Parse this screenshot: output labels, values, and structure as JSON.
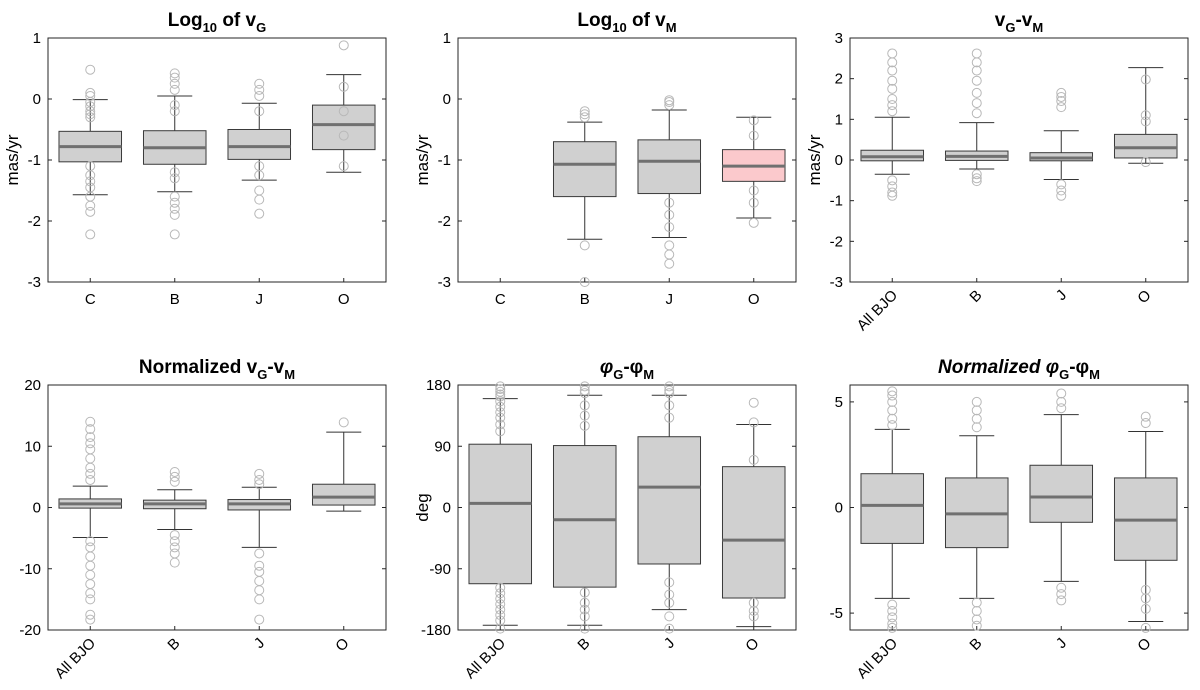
{
  "colors": {
    "box_fill": "#d0d0d0",
    "box_highlight": "#fbc9cc",
    "median": "#707070",
    "outlier": "#b8b8b8",
    "whisker": "#333333"
  },
  "chart_data": [
    {
      "type": "boxplot",
      "title": {
        "base": "Log",
        "sub": "10",
        "mid": " of v",
        "sub2": "G"
      },
      "ylabel": "mas/yr",
      "ylim": [
        -3,
        1
      ],
      "yticks": [
        1,
        0,
        -1,
        -2,
        -3
      ],
      "ytick_labels": [
        "1",
        "0",
        "-1",
        "-2",
        "-3"
      ],
      "categories": [
        "C",
        "B",
        "J",
        "O"
      ],
      "rotate_labels": false,
      "boxes": [
        {
          "q1": -1.03,
          "median": -0.78,
          "q3": -0.53,
          "wlo": -1.57,
          "whi": -0.01,
          "outliers": [
            0.48,
            0.1,
            0.05,
            -0.05,
            -0.12,
            -0.2,
            -0.25,
            -0.3,
            -1.1,
            -1.25,
            -1.35,
            -1.45,
            -1.6,
            -1.75,
            -1.85,
            -2.22
          ]
        },
        {
          "q1": -1.07,
          "median": -0.8,
          "q3": -0.52,
          "wlo": -1.52,
          "whi": 0.05,
          "outliers": [
            0.42,
            0.35,
            0.25,
            0.15,
            -0.1,
            -0.2,
            -1.2,
            -1.3,
            -1.6,
            -1.7,
            -1.8,
            -1.9,
            -2.22
          ]
        },
        {
          "q1": -0.99,
          "median": -0.78,
          "q3": -0.5,
          "wlo": -1.33,
          "whi": -0.07,
          "outliers": [
            0.25,
            0.15,
            0.05,
            -0.2,
            -1.1,
            -1.25,
            -1.5,
            -1.65,
            -1.88
          ]
        },
        {
          "q1": -0.83,
          "median": -0.42,
          "q3": -0.1,
          "wlo": -1.2,
          "whi": 0.4,
          "outliers": [
            0.88,
            0.2,
            -0.2,
            -0.6,
            -1.1
          ]
        }
      ]
    },
    {
      "type": "boxplot",
      "title": {
        "base": "Log",
        "sub": "10",
        "mid": " of v",
        "sub2": "M"
      },
      "ylabel": "mas/yr",
      "ylim": [
        -3,
        1
      ],
      "yticks": [
        1,
        0,
        -1,
        -2,
        -3
      ],
      "ytick_labels": [
        "1",
        "0",
        "-1",
        "-2",
        "-3"
      ],
      "categories": [
        "C",
        "B",
        "J",
        "O"
      ],
      "rotate_labels": false,
      "boxes": [
        null,
        {
          "q1": -1.6,
          "median": -1.07,
          "q3": -0.7,
          "wlo": -2.3,
          "whi": -0.38,
          "outliers": [
            -0.2,
            -0.25,
            -0.3,
            -2.4,
            -3.0
          ]
        },
        {
          "q1": -1.55,
          "median": -1.02,
          "q3": -0.67,
          "wlo": -2.27,
          "whi": -0.18,
          "outliers": [
            -0.02,
            -0.05,
            -0.1,
            -1.7,
            -1.9,
            -2.1,
            -2.4,
            -2.55,
            -2.7
          ]
        },
        {
          "q1": -1.35,
          "median": -1.1,
          "q3": -0.83,
          "wlo": -1.95,
          "whi": -0.3,
          "outliers": [
            -0.35,
            -0.6,
            -1.5,
            -1.7,
            -2.03
          ],
          "highlight": true
        }
      ]
    },
    {
      "type": "boxplot",
      "title": {
        "base": "v",
        "sub": "G",
        "mid": "-v",
        "sub2": "M"
      },
      "ylabel": "mas/yr",
      "ylim": [
        -3,
        3
      ],
      "yticks": [
        3,
        2,
        1,
        0,
        -1,
        -2,
        -3
      ],
      "ytick_labels": [
        "3",
        "2",
        "1",
        "0",
        "-1",
        "-2",
        "-3"
      ],
      "categories": [
        "All BJO",
        "B",
        "J",
        "O"
      ],
      "rotate_labels": true,
      "boxes": [
        {
          "q1": -0.02,
          "median": 0.08,
          "q3": 0.24,
          "wlo": -0.35,
          "whi": 1.05,
          "outliers": [
            2.62,
            2.4,
            2.2,
            1.95,
            1.75,
            1.5,
            1.35,
            1.2,
            -0.5,
            -0.65,
            -0.8,
            -0.88
          ]
        },
        {
          "q1": -0.01,
          "median": 0.09,
          "q3": 0.22,
          "wlo": -0.22,
          "whi": 0.92,
          "outliers": [
            2.62,
            2.4,
            2.2,
            1.95,
            1.65,
            1.4,
            1.15,
            -0.35,
            -0.45,
            -0.52
          ]
        },
        {
          "q1": -0.02,
          "median": 0.05,
          "q3": 0.18,
          "wlo": -0.48,
          "whi": 0.72,
          "outliers": [
            1.65,
            1.55,
            1.45,
            1.3,
            -0.6,
            -0.75,
            -0.88
          ]
        },
        {
          "q1": 0.05,
          "median": 0.3,
          "q3": 0.63,
          "wlo": -0.08,
          "whi": 2.27,
          "outliers": [
            1.98,
            1.1,
            0.95,
            -0.05
          ]
        }
      ]
    },
    {
      "type": "boxplot",
      "title": {
        "base": "Normalized v",
        "sub": "G",
        "mid": "-v",
        "sub2": "M"
      },
      "ylabel": "",
      "ylim": [
        -20,
        20
      ],
      "yticks": [
        20,
        10,
        0,
        -10,
        -20
      ],
      "ytick_labels": [
        "20",
        "10",
        "0",
        "-10",
        "-20"
      ],
      "categories": [
        "All BJO",
        "B",
        "J",
        "O"
      ],
      "rotate_labels": true,
      "boxes": [
        {
          "q1": -0.1,
          "median": 0.6,
          "q3": 1.4,
          "wlo": -4.9,
          "whi": 3.5,
          "outliers": [
            14.0,
            12.8,
            11.5,
            10.5,
            9.5,
            8.0,
            6.5,
            5.5,
            4.5,
            -5.5,
            -6.5,
            -8.0,
            -9.5,
            -11.0,
            -12.5,
            -14.0,
            -15.0,
            -17.5,
            -18.3
          ]
        },
        {
          "q1": -0.2,
          "median": 0.6,
          "q3": 1.2,
          "wlo": -3.6,
          "whi": 2.9,
          "outliers": [
            5.8,
            5.0,
            4.2,
            -4.5,
            -5.5,
            -6.5,
            -7.5,
            -9.0
          ]
        },
        {
          "q1": -0.4,
          "median": 0.6,
          "q3": 1.3,
          "wlo": -6.5,
          "whi": 3.3,
          "outliers": [
            5.5,
            4.5,
            3.8,
            -7.5,
            -9.5,
            -10.5,
            -12.0,
            -13.5,
            -15.0,
            -18.3
          ]
        },
        {
          "q1": 0.4,
          "median": 1.7,
          "q3": 3.8,
          "wlo": -0.6,
          "whi": 12.3,
          "outliers": [
            13.9
          ]
        }
      ]
    },
    {
      "type": "boxplot",
      "title": {
        "greek": true,
        "base": "φ",
        "sub": "G",
        "mid": "-φ",
        "sub2": "M"
      },
      "ylabel": "deg",
      "ylim": [
        -180,
        180
      ],
      "yticks": [
        180,
        90,
        0,
        -90,
        -180
      ],
      "ytick_labels": [
        "180",
        "90",
        "0",
        "-90",
        "-180"
      ],
      "categories": [
        "All BJO",
        "B",
        "J",
        "O"
      ],
      "rotate_labels": true,
      "boxes": [
        {
          "q1": -112,
          "median": 6,
          "q3": 93,
          "wlo": -173,
          "whi": 160,
          "outliers": [
            178,
            174,
            170,
            166,
            163,
            156,
            148,
            140,
            132,
            122,
            112,
            -118,
            -126,
            -134,
            -142,
            -150,
            -158,
            -166,
            -178
          ]
        },
        {
          "q1": -117,
          "median": -18,
          "q3": 91,
          "wlo": -173,
          "whi": 165,
          "outliers": [
            178,
            172,
            168,
            150,
            135,
            120,
            -125,
            -140,
            -150,
            -160,
            -178
          ]
        },
        {
          "q1": -83,
          "median": 30,
          "q3": 104,
          "wlo": -150,
          "whi": 165,
          "outliers": [
            178,
            172,
            168,
            150,
            132,
            -110,
            -128,
            -140,
            -160,
            -178
          ]
        },
        {
          "q1": -133,
          "median": -48,
          "q3": 60,
          "wlo": -175,
          "whi": 122,
          "outliers": [
            154,
            125,
            70,
            -140,
            -152,
            -160
          ]
        }
      ]
    },
    {
      "type": "boxplot",
      "title": {
        "greek": true,
        "base": "Normalized φ",
        "sub": "G",
        "mid": "-φ",
        "sub2": "M"
      },
      "ylabel": "",
      "ylim": [
        -5.8,
        5.8
      ],
      "yticks": [
        5,
        0,
        -5
      ],
      "ytick_labels": [
        "5",
        "0",
        "-5"
      ],
      "categories": [
        "All BJO",
        "B",
        "J",
        "O"
      ],
      "rotate_labels": true,
      "boxes": [
        {
          "q1": -1.7,
          "median": 0.1,
          "q3": 1.6,
          "wlo": -4.3,
          "whi": 3.7,
          "outliers": [
            5.5,
            5.3,
            5.0,
            4.6,
            4.2,
            3.9,
            -4.6,
            -4.9,
            -5.2,
            -5.5,
            -5.7
          ]
        },
        {
          "q1": -1.9,
          "median": -0.3,
          "q3": 1.4,
          "wlo": -4.3,
          "whi": 3.4,
          "outliers": [
            5.0,
            4.6,
            4.2,
            3.8,
            -4.5,
            -4.9,
            -5.3,
            -5.6
          ]
        },
        {
          "q1": -0.7,
          "median": 0.5,
          "q3": 2.0,
          "wlo": -3.5,
          "whi": 4.4,
          "outliers": [
            5.4,
            5.0,
            4.7,
            -3.8,
            -4.1,
            -4.4
          ]
        },
        {
          "q1": -2.5,
          "median": -0.6,
          "q3": 1.4,
          "wlo": -5.4,
          "whi": 3.6,
          "outliers": [
            4.3,
            4.0,
            -3.9,
            -4.3,
            -4.8,
            -5.7
          ]
        }
      ]
    }
  ]
}
